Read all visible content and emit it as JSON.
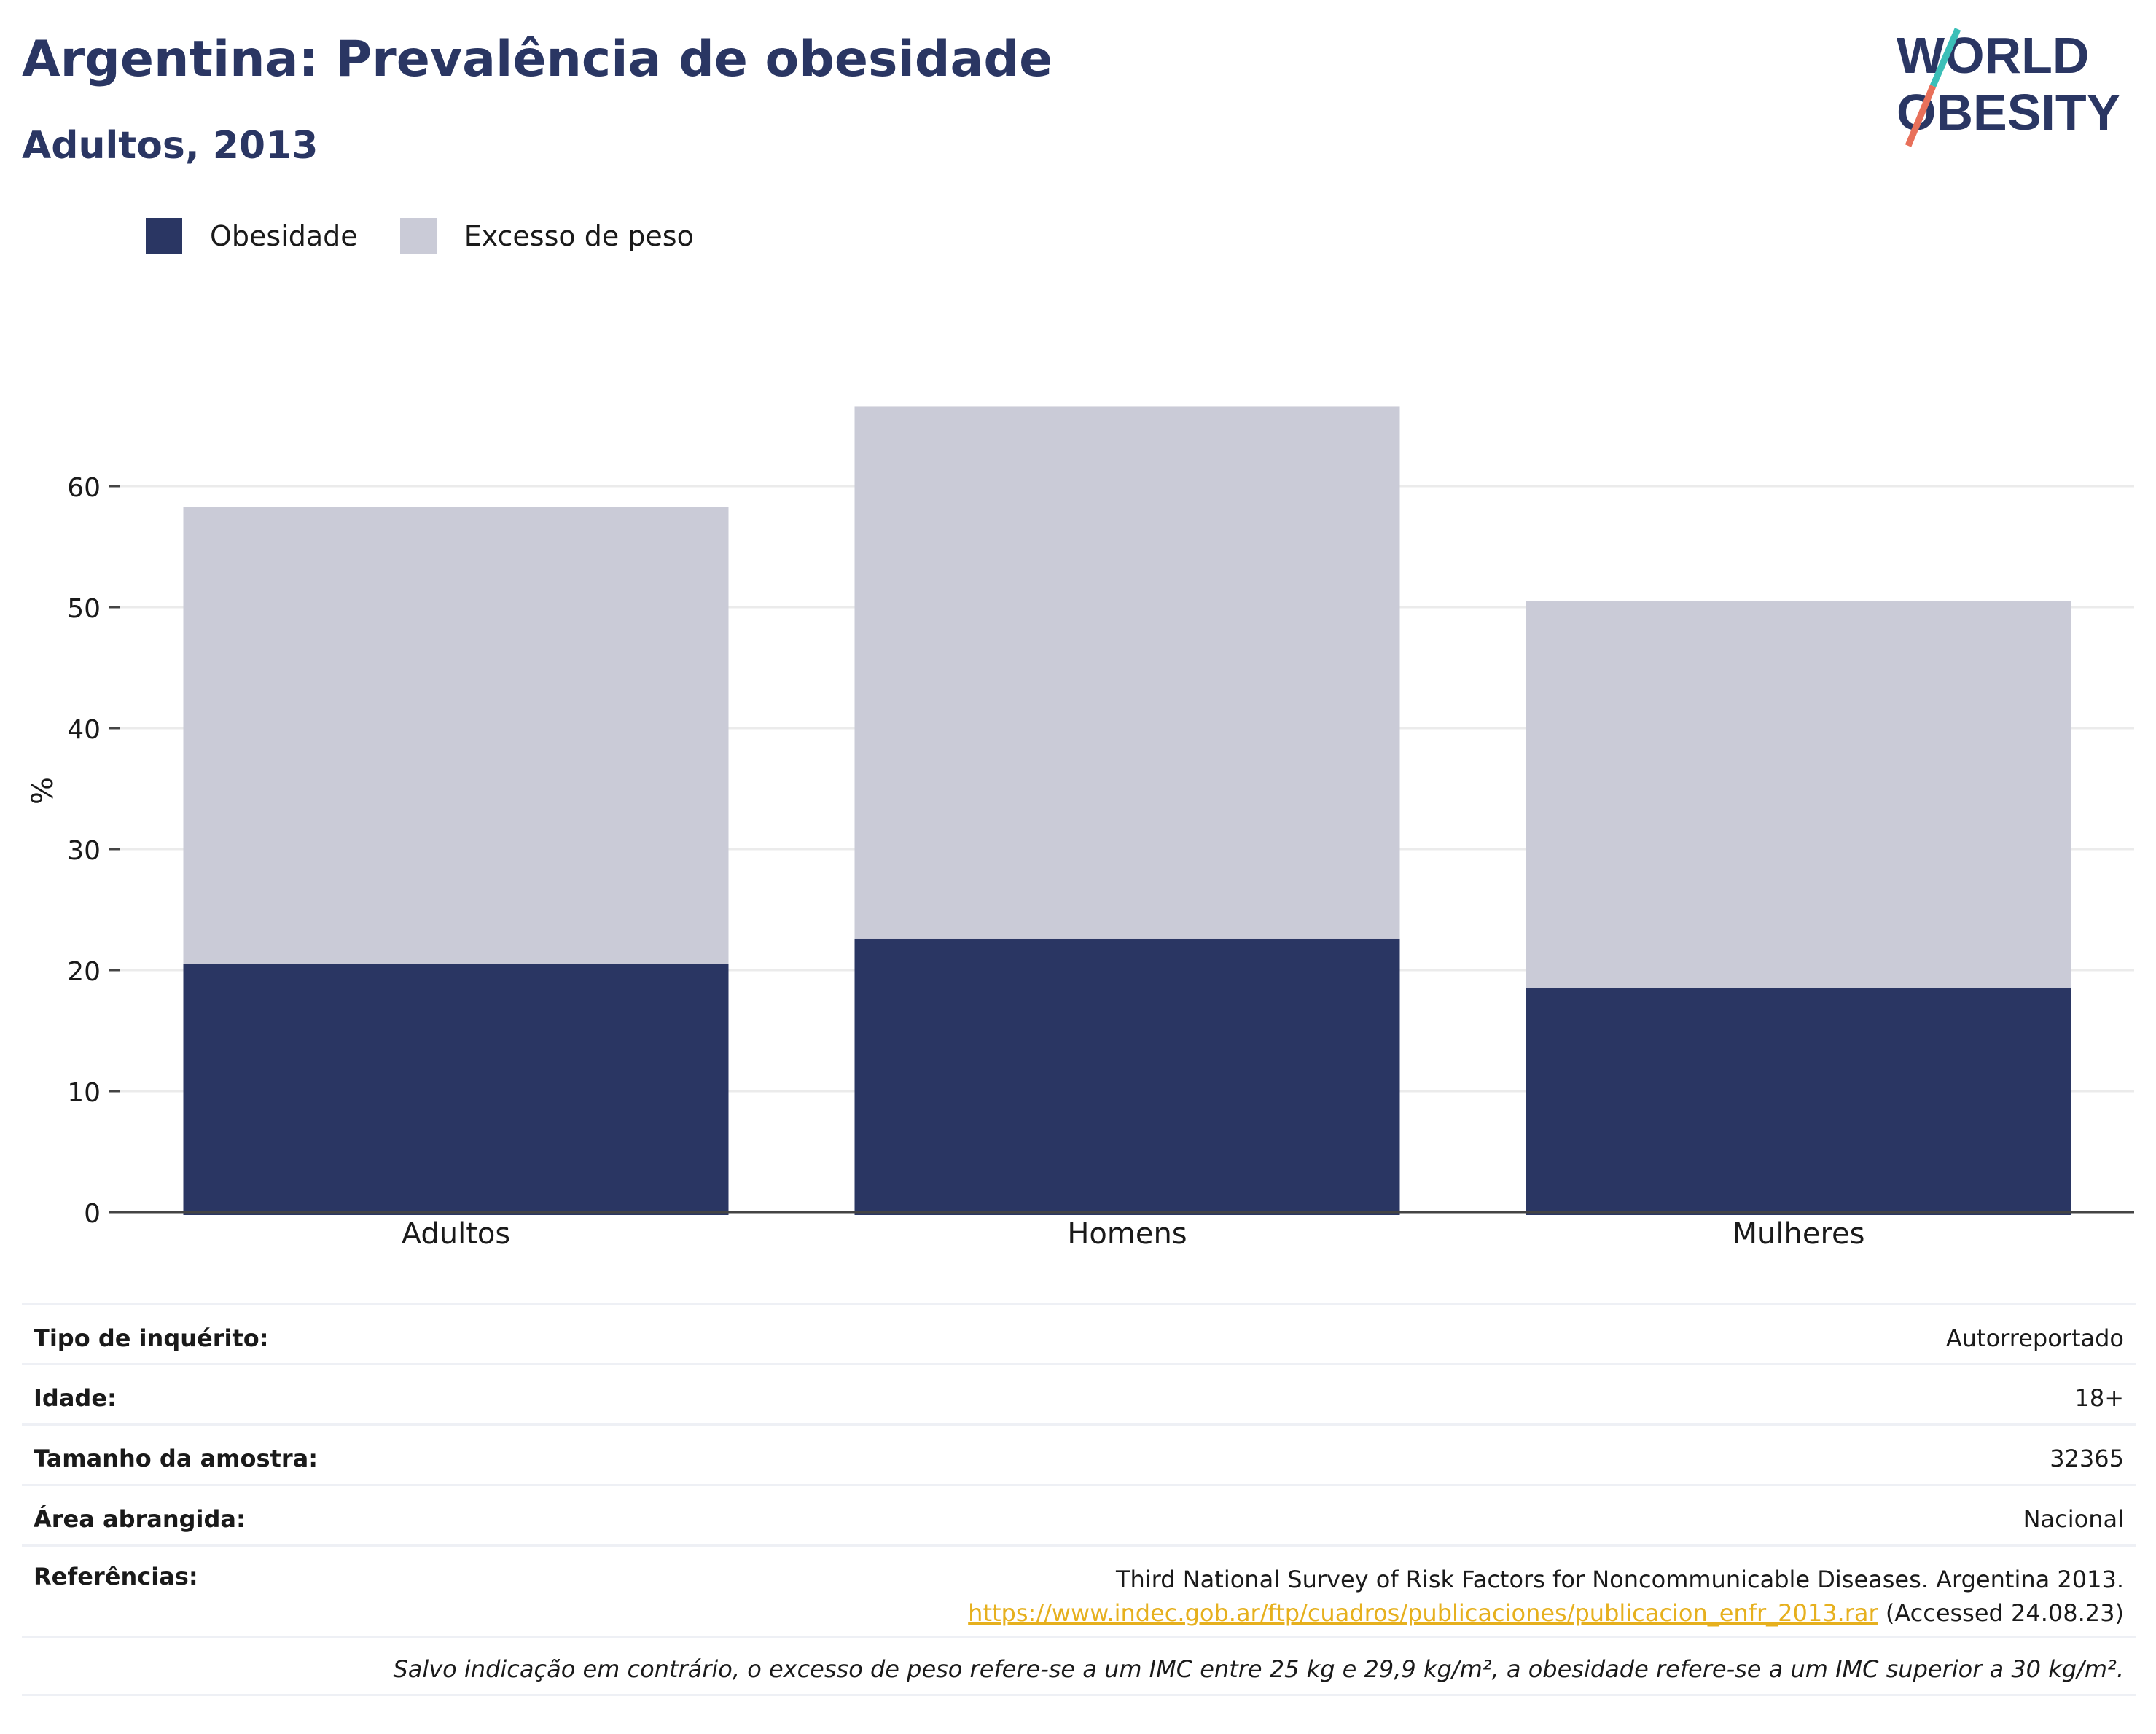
{
  "header": {
    "title": "Argentina: Prevalência de obesidade",
    "subtitle": "Adultos, 2013"
  },
  "logo": {
    "line1": "WORLD",
    "line2": "OBESITY"
  },
  "colors": {
    "obesity": "#2a3663",
    "overweight": "#cacbd7",
    "title": "#2a3663",
    "link": "#e6b01e",
    "logo_teal": "#3bbfb8",
    "logo_coral": "#e8705a"
  },
  "chart_data": {
    "type": "bar",
    "stacked": true,
    "categories": [
      "Adultos",
      "Homens",
      "Mulheres"
    ],
    "series": [
      {
        "name": "Obesidade",
        "values": [
          20.5,
          22.6,
          18.5
        ]
      },
      {
        "name": "Excesso de peso",
        "values": [
          37.8,
          44.0,
          32.0
        ]
      }
    ],
    "ylabel": "%",
    "xlabel": "",
    "ylim": [
      0,
      70
    ],
    "yticks": [
      0,
      10,
      20,
      30,
      40,
      50,
      60
    ],
    "grid": true,
    "legend": "top-left"
  },
  "info": {
    "rows": [
      {
        "label": "Tipo de inquérito:",
        "value": "Autorreportado"
      },
      {
        "label": "Idade:",
        "value": "18+"
      },
      {
        "label": "Tamanho da amostra:",
        "value": "32365"
      },
      {
        "label": "Área abrangida:",
        "value": "Nacional"
      }
    ],
    "references": {
      "label": "Referências:",
      "text": "Third National Survey of Risk Factors for Noncommunicable Diseases. Argentina 2013.",
      "link": "https://www.indec.gob.ar/ftp/cuadros/publicaciones/publicacion_enfr_2013.rar",
      "accessed": "(Accessed 24.08.23)"
    },
    "footnote": "Salvo indicação em contrário, o excesso de peso refere-se a um IMC entre 25 kg e 29,9 kg/m², a obesidade refere-se a um IMC superior a 30 kg/m²."
  }
}
